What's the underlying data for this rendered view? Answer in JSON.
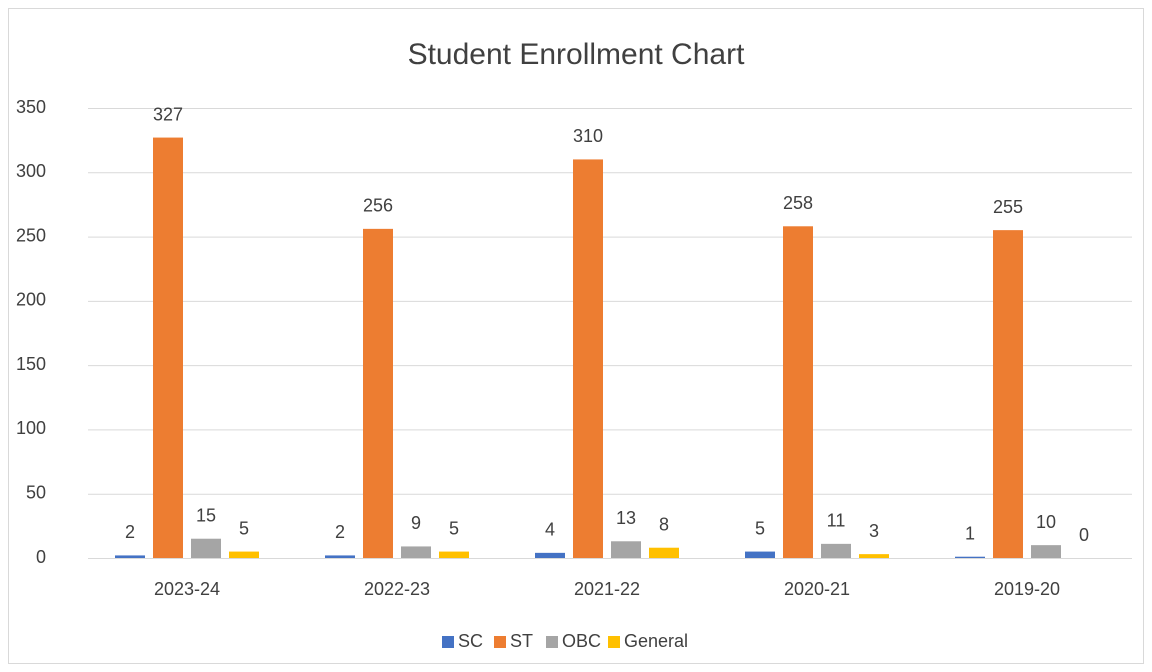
{
  "chart_data": {
    "type": "bar",
    "title": "Student Enrollment Chart",
    "categories": [
      "2023-24",
      "2022-23",
      "2021-22",
      "2020-21",
      "2019-20"
    ],
    "series": [
      {
        "name": "SC",
        "color": "#4472c4",
        "values": [
          2,
          2,
          4,
          5,
          1
        ]
      },
      {
        "name": "ST",
        "color": "#ed7d31",
        "values": [
          327,
          256,
          310,
          258,
          255
        ]
      },
      {
        "name": "OBC",
        "color": "#a5a5a5",
        "values": [
          15,
          9,
          13,
          11,
          10
        ]
      },
      {
        "name": "General",
        "color": "#ffc000",
        "values": [
          5,
          5,
          8,
          3,
          0
        ]
      }
    ],
    "ylim": [
      0,
      350
    ],
    "yticks": [
      0,
      50,
      100,
      150,
      200,
      250,
      300,
      350
    ],
    "grid": true,
    "legend": "bottom"
  }
}
